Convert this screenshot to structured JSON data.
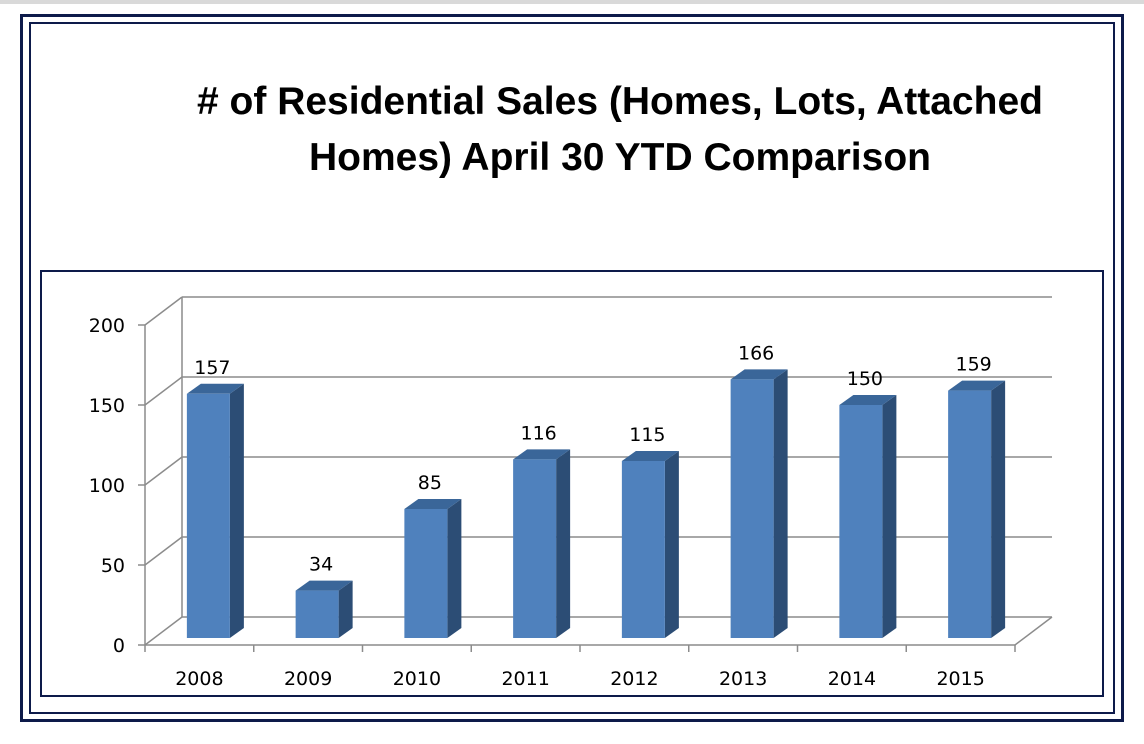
{
  "chart_data": {
    "type": "bar",
    "title": "# of Residential Sales (Homes, Lots, Attached Homes) April 30 YTD Comparison",
    "title_lines": [
      "# of Residential Sales (Homes, Lots, Attached",
      "Homes) April 30 YTD Comparison"
    ],
    "categories": [
      "2008",
      "2009",
      "2010",
      "2011",
      "2012",
      "2013",
      "2014",
      "2015"
    ],
    "values": [
      157,
      34,
      85,
      116,
      115,
      166,
      150,
      159
    ],
    "data_labels": [
      "157",
      "34",
      "85",
      "116",
      "115",
      "166",
      "150",
      "159"
    ],
    "ylim": [
      0,
      200
    ],
    "y_ticks": [
      0,
      50,
      100,
      150,
      200
    ],
    "y_tick_labels": [
      "0",
      "50",
      "100",
      "150",
      "200"
    ],
    "xlabel": "",
    "ylabel": "",
    "grid": true,
    "legend": "none",
    "style": "3d-column",
    "colors": {
      "bar_front": "#4f81bd",
      "bar_side": "#2c4d75",
      "bar_top": "#3a6699",
      "grid": "#8c8c8c",
      "frame": "#0d1a4a"
    }
  }
}
